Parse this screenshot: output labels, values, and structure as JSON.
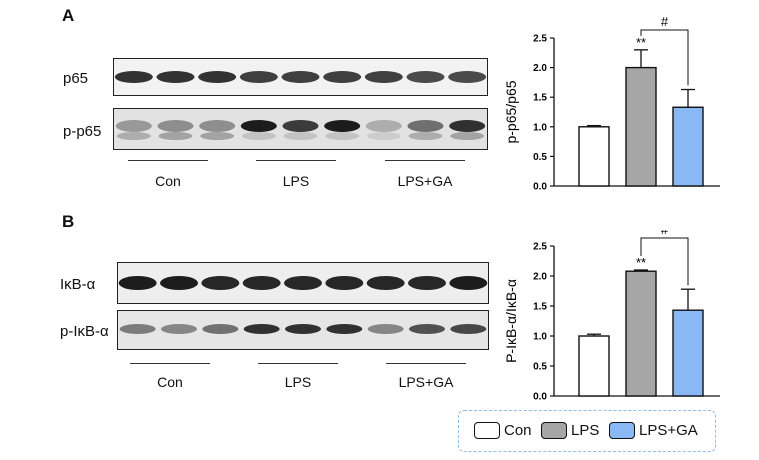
{
  "panels": [
    {
      "letter": "A",
      "rows": [
        "p65",
        "p-p65"
      ],
      "groups": [
        "Con",
        "LPS",
        "LPS+GA"
      ]
    },
    {
      "letter": "B",
      "rows": [
        "IκB-α",
        "p-IκB-α"
      ],
      "groups": [
        "Con",
        "LPS",
        "LPS+GA"
      ]
    }
  ],
  "legend": [
    {
      "label": "Con",
      "color": "#ffffff"
    },
    {
      "label": "LPS",
      "color": "#a6a6a6"
    },
    {
      "label": "LPS+GA",
      "color": "#8ab8f4"
    }
  ],
  "chart_data": [
    {
      "type": "bar",
      "ylabel": "p-p65/p65",
      "ylim": [
        0,
        2.5
      ],
      "yticks": [
        "0.0",
        "0.5",
        "1.0",
        "1.5",
        "2.0",
        "2.5"
      ],
      "categories": [
        "Con",
        "LPS",
        "LPS+GA"
      ],
      "values": [
        1.0,
        2.0,
        1.33
      ],
      "errors": [
        0.02,
        0.3,
        0.3
      ],
      "colors": [
        "#ffffff",
        "#a6a6a6",
        "#8ab8f4"
      ],
      "annotations": {
        "stars": "**",
        "hash": "#"
      }
    },
    {
      "type": "bar",
      "ylabel": "P-IκB-α/IκB-α",
      "ylim": [
        0,
        2.5
      ],
      "yticks": [
        "0.0",
        "0.5",
        "1.0",
        "1.5",
        "2.0",
        "2.5"
      ],
      "categories": [
        "Con",
        "LPS",
        "LPS+GA"
      ],
      "values": [
        1.0,
        2.08,
        1.43
      ],
      "errors": [
        0.03,
        0.02,
        0.35
      ],
      "colors": [
        "#ffffff",
        "#a6a6a6",
        "#8ab8f4"
      ],
      "annotations": {
        "stars": "**",
        "hash": "#"
      }
    }
  ]
}
